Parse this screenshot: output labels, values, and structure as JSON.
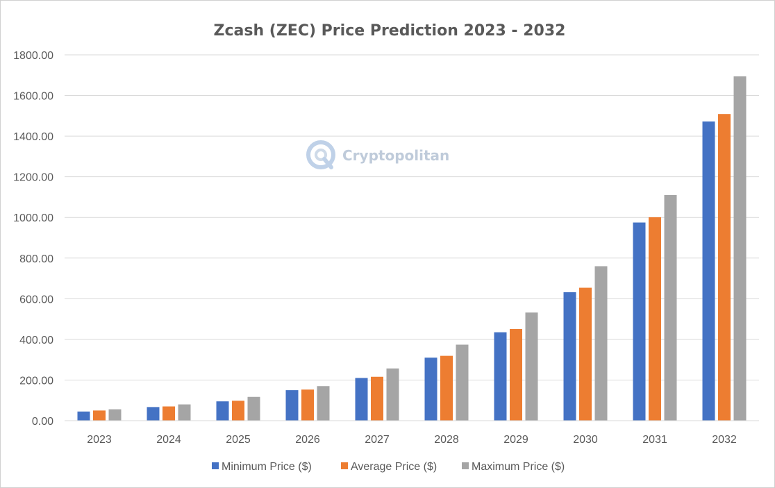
{
  "chart_data": {
    "type": "bar",
    "title": "Zcash (ZEC) Price Prediction 2023 - 2032",
    "xlabel": "",
    "ylabel": "",
    "categories": [
      "2023",
      "2024",
      "2025",
      "2026",
      "2027",
      "2028",
      "2029",
      "2030",
      "2031",
      "2032"
    ],
    "series": [
      {
        "name": "Minimum Price ($)",
        "color": "#4472c4",
        "values": [
          45,
          67,
          95,
          150,
          210,
          310,
          435,
          632,
          975,
          1472
        ]
      },
      {
        "name": "Average Price ($)",
        "color": "#ed7d31",
        "values": [
          50,
          70,
          98,
          153,
          216,
          319,
          451,
          654,
          1001,
          1509
        ]
      },
      {
        "name": "Maximum Price ($)",
        "color": "#a5a5a5",
        "values": [
          56,
          80,
          117,
          170,
          257,
          374,
          532,
          760,
          1110,
          1694
        ]
      }
    ],
    "ylim": [
      0,
      1800
    ],
    "yticks": [
      "0.00",
      "200.00",
      "400.00",
      "600.00",
      "800.00",
      "1000.00",
      "1200.00",
      "1400.00",
      "1600.00",
      "1800.00"
    ],
    "grid": true,
    "legend_position": "bottom"
  },
  "watermark": {
    "text": "Cryptopolitan",
    "logo_icon": "cryptopolitan-logo-icon"
  }
}
